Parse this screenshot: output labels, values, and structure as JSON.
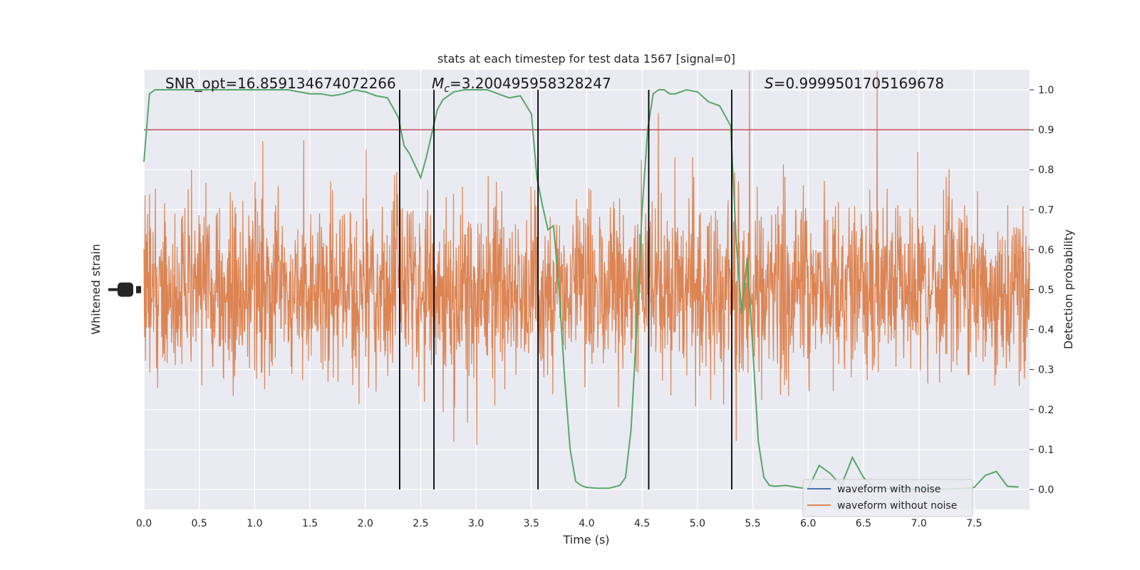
{
  "chart_data": {
    "type": "line",
    "title": "stats at each timestep for test data 1567 [signal=0]",
    "xlabel": "Time (s)",
    "ylabel_left": "Whitened strain",
    "ylabel_right": "Detection probability",
    "xlim": [
      0,
      8.0
    ],
    "ylim_right": [
      -0.05,
      1.05
    ],
    "x_ticks": [
      "0.0",
      "0.5",
      "1.0",
      "1.5",
      "2.0",
      "2.5",
      "3.0",
      "3.5",
      "4.0",
      "4.5",
      "5.0",
      "5.5",
      "6.0",
      "6.5",
      "7.0",
      "7.5"
    ],
    "y_ticks_right": [
      "0.0",
      "0.1",
      "0.2",
      "0.3",
      "0.4",
      "0.5",
      "0.6",
      "0.7",
      "0.8",
      "0.9",
      "1.0"
    ],
    "grid": true,
    "annotations": {
      "snr": "SNR_opt=16.859134674072266",
      "mc_symbol": "M",
      "mc_sub": "c",
      "mc_value": "=3.200495958328247",
      "s_symbol": "S",
      "s_value": "=0.9999501705169678"
    },
    "threshold": 0.9,
    "vlines": [
      2.31,
      2.62,
      3.56,
      4.56,
      5.31
    ],
    "legend": {
      "placement": "lower-right",
      "entries": [
        {
          "label": "waveform with noise",
          "color": "#4c72b0"
        },
        {
          "label": "waveform without noise",
          "color": "#dd8452"
        }
      ]
    },
    "colors": {
      "background": "#eaeaf2",
      "grid": "#ffffff",
      "noise_waveform": "#dd8452",
      "probability": "#55a868",
      "threshold": "#c44e52",
      "vline": "#000000"
    },
    "probability_series": {
      "x": [
        0.0,
        0.05,
        0.1,
        0.15,
        0.2,
        0.3,
        0.5,
        0.7,
        1.0,
        1.3,
        1.5,
        1.6,
        1.7,
        1.8,
        1.9,
        2.0,
        2.1,
        2.2,
        2.3,
        2.35,
        2.4,
        2.45,
        2.5,
        2.55,
        2.6,
        2.65,
        2.7,
        2.8,
        2.9,
        3.0,
        3.1,
        3.2,
        3.3,
        3.4,
        3.5,
        3.55,
        3.6,
        3.65,
        3.7,
        3.75,
        3.8,
        3.85,
        3.9,
        3.95,
        4.0,
        4.1,
        4.2,
        4.3,
        4.35,
        4.4,
        4.45,
        4.5,
        4.55,
        4.6,
        4.65,
        4.7,
        4.75,
        4.8,
        4.9,
        5.0,
        5.1,
        5.2,
        5.3,
        5.35,
        5.4,
        5.45,
        5.5,
        5.55,
        5.6,
        5.65,
        5.7,
        5.8,
        5.9,
        6.0,
        6.1,
        6.2,
        6.3,
        6.4,
        6.5,
        6.6,
        6.7,
        6.8,
        6.9,
        7.0,
        7.1,
        7.2,
        7.3,
        7.4,
        7.5,
        7.6,
        7.7,
        7.8,
        7.9
      ],
      "y": [
        0.82,
        0.99,
        1.0,
        1.0,
        1.0,
        1.0,
        1.0,
        1.0,
        1.0,
        1.0,
        0.99,
        0.99,
        0.985,
        0.99,
        1.0,
        0.995,
        0.985,
        0.98,
        0.93,
        0.86,
        0.84,
        0.81,
        0.78,
        0.83,
        0.89,
        0.95,
        0.975,
        0.995,
        1.0,
        1.0,
        1.0,
        0.99,
        0.98,
        0.985,
        0.94,
        0.78,
        0.71,
        0.65,
        0.66,
        0.5,
        0.28,
        0.1,
        0.02,
        0.01,
        0.005,
        0.003,
        0.003,
        0.01,
        0.03,
        0.15,
        0.4,
        0.7,
        0.9,
        0.99,
        1.0,
        1.0,
        0.99,
        0.99,
        1.0,
        0.995,
        0.97,
        0.96,
        0.91,
        0.62,
        0.44,
        0.58,
        0.35,
        0.12,
        0.03,
        0.01,
        0.008,
        0.01,
        0.005,
        0.002,
        0.06,
        0.04,
        0.01,
        0.08,
        0.03,
        0.005,
        0.002,
        0.001,
        0.001,
        0.001,
        0.001,
        0.001,
        0.001,
        0.002,
        0.005,
        0.035,
        0.045,
        0.008,
        0.006
      ]
    }
  }
}
